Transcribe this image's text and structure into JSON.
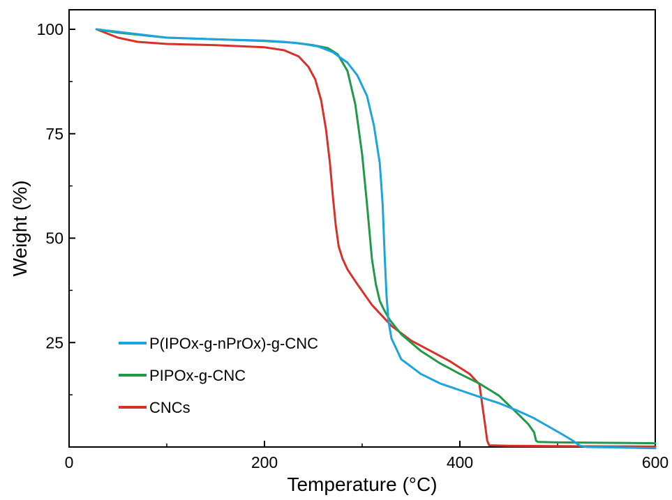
{
  "chart_data": {
    "type": "line",
    "xlabel": "Temperature (°C)",
    "ylabel": "Weight (%)",
    "xlim": [
      0,
      600
    ],
    "ylim": [
      0,
      100
    ],
    "x_ticks": [
      0,
      200,
      400,
      600
    ],
    "y_ticks": [
      25,
      50,
      75,
      100
    ],
    "x_tick_labels": [
      "0",
      "200",
      "400",
      "600"
    ],
    "y_tick_labels": [
      "25",
      "50",
      "75",
      "100"
    ],
    "grid": false,
    "legend_position": "bottom-left",
    "series": [
      {
        "name": "P(IPOx-g-nPrOx)-g-CNC",
        "color": "#1ba4dd",
        "x": [
          28,
          50,
          100,
          150,
          200,
          220,
          240,
          255,
          270,
          285,
          295,
          305,
          312,
          318,
          321,
          323,
          325,
          327,
          330,
          340,
          360,
          380,
          400,
          420,
          440,
          460,
          475,
          490,
          505,
          515,
          523,
          530,
          560,
          600
        ],
        "y": [
          100,
          99.4,
          98,
          97.6,
          97.3,
          97.0,
          96.5,
          95.9,
          94.5,
          92.0,
          89.0,
          84.0,
          77.0,
          68.0,
          58.0,
          46.0,
          36.0,
          30.0,
          26.0,
          21.0,
          17.5,
          15.2,
          13.6,
          12.0,
          10.5,
          8.6,
          7.0,
          5.0,
          3.0,
          1.6,
          0.3,
          0,
          -0.1,
          -0.3
        ]
      },
      {
        "name": "PIPOx-g-CNC",
        "color": "#1f9a49",
        "x": [
          28,
          50,
          100,
          150,
          200,
          230,
          250,
          265,
          275,
          285,
          293,
          300,
          305,
          310,
          314,
          318,
          322,
          328,
          340,
          360,
          380,
          400,
          420,
          440,
          460,
          470,
          476,
          478,
          480,
          500,
          550,
          600
        ],
        "y": [
          100,
          99.2,
          98,
          97.6,
          97.2,
          96.8,
          96.2,
          95.5,
          94.0,
          90.0,
          82.0,
          70.0,
          58.0,
          45.0,
          39.0,
          35.0,
          33.0,
          30.5,
          27.0,
          23.0,
          20.0,
          17.5,
          15.2,
          12.3,
          7.8,
          5.5,
          3.5,
          1.5,
          1.2,
          1.1,
          1.0,
          0.9
        ]
      },
      {
        "name": "CNCs",
        "color": "#d8312a",
        "x": [
          28,
          50,
          70,
          100,
          150,
          200,
          220,
          235,
          245,
          252,
          258,
          263,
          267,
          270,
          273,
          276,
          280,
          285,
          295,
          310,
          330,
          350,
          370,
          390,
          410,
          420,
          423,
          426,
          428,
          430,
          450,
          500,
          600
        ],
        "y": [
          100,
          98,
          97,
          96.5,
          96.2,
          95.7,
          95.0,
          93.5,
          91.0,
          88.0,
          83.0,
          76.0,
          68.0,
          60.0,
          53.0,
          48.0,
          45.0,
          42.5,
          39.0,
          34.0,
          29.0,
          25.5,
          23.0,
          20.5,
          17.5,
          15.0,
          10.0,
          5.0,
          1.5,
          0.4,
          0.3,
          0.2,
          0.1
        ]
      }
    ]
  }
}
